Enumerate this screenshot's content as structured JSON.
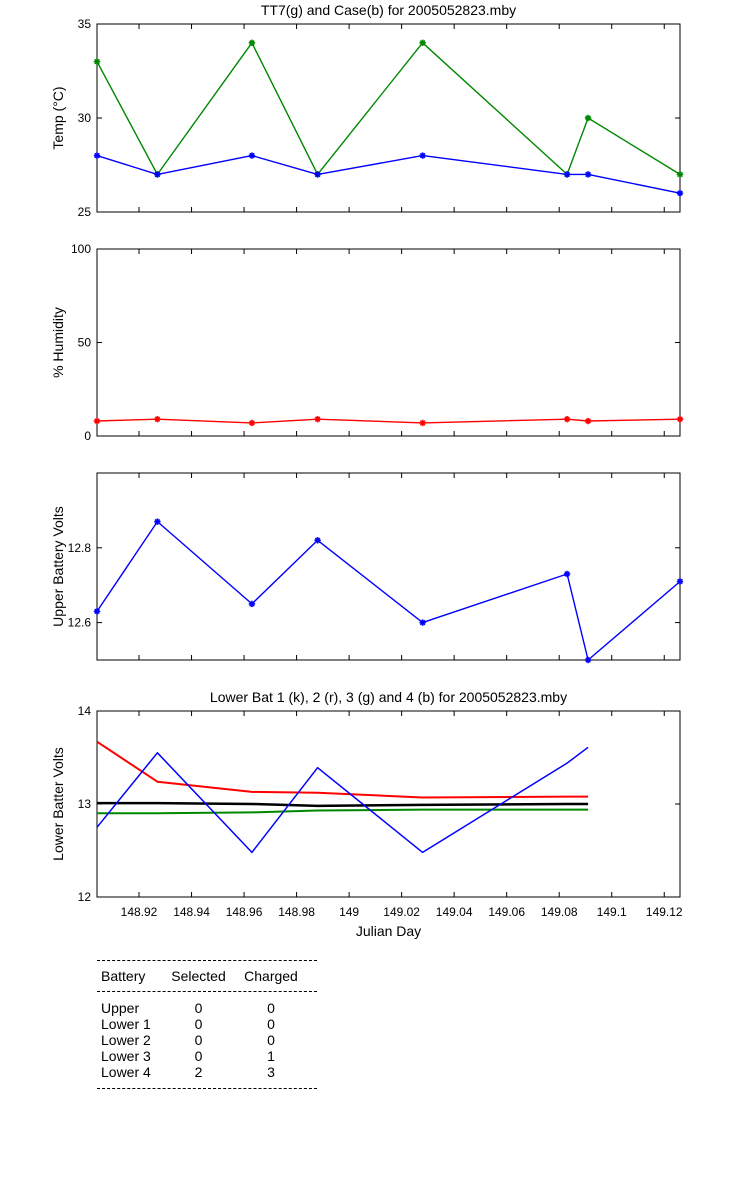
{
  "chart_data": [
    {
      "id": "temp",
      "type": "line",
      "title": "TT7(g) and Case(b) for 2005052823.mby",
      "ylabel": "Temp  (°C)",
      "xlabel": "",
      "ylim": [
        25,
        35
      ],
      "xlim": [
        148.904,
        149.126
      ],
      "yticks": [
        25,
        30,
        35
      ],
      "yticklabels": [
        "25",
        "30",
        "35"
      ],
      "grid": false,
      "markers": true,
      "series": [
        {
          "color": "#008800",
          "x": [
            148.904,
            148.927,
            148.963,
            148.988,
            149.028,
            149.083,
            149.091,
            149.126
          ],
          "y": [
            33,
            27,
            34,
            27,
            34,
            27,
            30,
            27
          ]
        },
        {
          "color": "#0000ff",
          "x": [
            148.904,
            148.927,
            148.963,
            148.988,
            149.028,
            149.083,
            149.091,
            149.126
          ],
          "y": [
            28,
            27,
            28,
            27,
            28,
            27,
            27,
            26
          ]
        }
      ]
    },
    {
      "id": "humidity",
      "type": "line",
      "title": "",
      "ylabel": "% Humidity",
      "xlabel": "",
      "ylim": [
        0,
        100
      ],
      "xlim": [
        148.904,
        149.126
      ],
      "yticks": [
        0,
        50,
        100
      ],
      "yticklabels": [
        "0",
        "50",
        "100"
      ],
      "grid": false,
      "markers": true,
      "series": [
        {
          "color": "#ff0000",
          "x": [
            148.904,
            148.927,
            148.963,
            148.988,
            149.028,
            149.083,
            149.091,
            149.126
          ],
          "y": [
            8,
            9,
            7,
            9,
            7,
            9,
            8,
            9
          ]
        }
      ]
    },
    {
      "id": "upper_battery",
      "type": "line",
      "title": "",
      "ylabel": "Upper Battery Volts",
      "xlabel": "",
      "ylim": [
        12.5,
        13.0
      ],
      "xlim": [
        148.904,
        149.126
      ],
      "yticks": [
        12.6,
        12.8
      ],
      "yticklabels": [
        "12.6",
        "12.8"
      ],
      "grid": false,
      "markers": true,
      "series": [
        {
          "color": "#0000ff",
          "x": [
            148.904,
            148.927,
            148.963,
            148.988,
            149.028,
            149.083,
            149.091,
            149.126
          ],
          "y": [
            12.63,
            12.87,
            12.65,
            12.82,
            12.6,
            12.73,
            12.5,
            12.71
          ]
        }
      ]
    },
    {
      "id": "lower_battery",
      "type": "line",
      "title": "Lower Bat 1 (k), 2 (r), 3 (g) and 4 (b) for 2005052823.mby",
      "ylabel": "Lower Batter Volts",
      "xlabel": "Julian Day",
      "ylim": [
        12,
        14
      ],
      "xlim": [
        148.904,
        149.126
      ],
      "yticks": [
        12,
        13,
        14
      ],
      "yticklabels": [
        "12",
        "13",
        "14"
      ],
      "xticks": [
        148.92,
        148.94,
        148.96,
        148.98,
        149.0,
        149.02,
        149.04,
        149.06,
        149.08,
        149.1,
        149.12
      ],
      "xticklabels": [
        "148.92",
        "148.94",
        "148.96",
        "148.98",
        "149",
        "149.02",
        "149.04",
        "149.06",
        "149.08",
        "149.1",
        "149.12"
      ],
      "grid": false,
      "markers": false,
      "series": [
        {
          "color": "#ff0000",
          "width": 2,
          "x": [
            148.904,
            148.927,
            148.963,
            148.988,
            149.028,
            149.083,
            149.091
          ],
          "y": [
            13.67,
            13.24,
            13.13,
            13.12,
            13.07,
            13.08,
            13.08
          ]
        },
        {
          "color": "#008800",
          "width": 2,
          "x": [
            148.904,
            148.927,
            148.963,
            148.988,
            149.028,
            149.083,
            149.091
          ],
          "y": [
            12.9,
            12.9,
            12.91,
            12.93,
            12.94,
            12.94,
            12.94
          ]
        },
        {
          "color": "#000000",
          "width": 2.5,
          "x": [
            148.904,
            148.927,
            148.963,
            148.988,
            149.028,
            149.083,
            149.091
          ],
          "y": [
            13.01,
            13.01,
            13.0,
            12.98,
            12.99,
            13.0,
            13.0
          ]
        },
        {
          "color": "#0000ff",
          "width": 1.5,
          "x": [
            148.904,
            148.927,
            148.963,
            148.988,
            149.028,
            149.083,
            149.091
          ],
          "y": [
            12.75,
            13.55,
            12.48,
            13.39,
            12.48,
            13.44,
            13.61
          ]
        }
      ]
    }
  ],
  "battery_table": {
    "headers": [
      "Battery",
      "Selected",
      "Charged"
    ],
    "rows": [
      [
        "Upper",
        "0",
        "0"
      ],
      [
        "Lower 1",
        "0",
        "0"
      ],
      [
        "Lower 2",
        "0",
        "0"
      ],
      [
        "Lower 3",
        "0",
        "1"
      ],
      [
        "Lower 4",
        "2",
        "3"
      ]
    ]
  }
}
